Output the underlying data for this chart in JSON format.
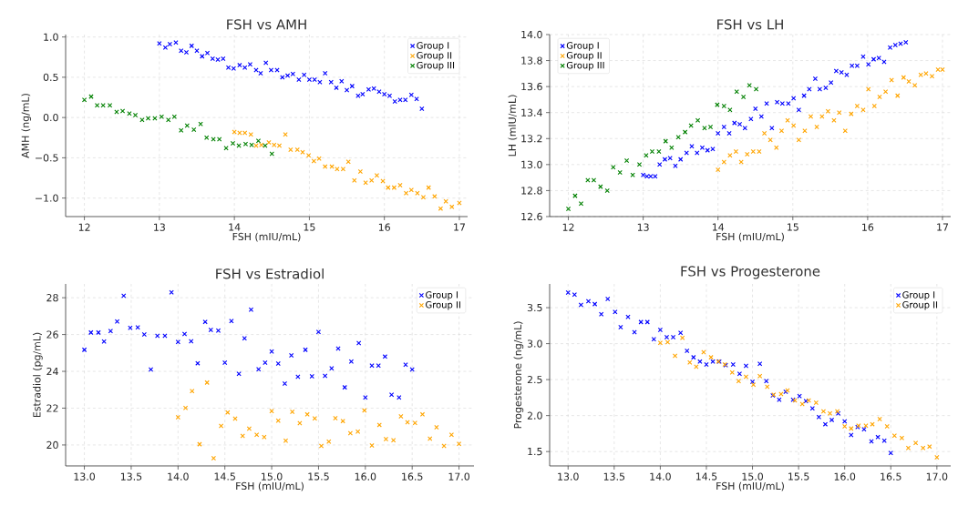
{
  "chart_data": [
    {
      "type": "scatter",
      "title": "FSH vs AMH",
      "xlabel": "FSH (mIU/mL)",
      "ylabel": "AMH (ng/mL)",
      "xlim": [
        11.75,
        17.11
      ],
      "ylim": [
        -1.23,
        1.03
      ],
      "xticks": [
        12,
        13,
        14,
        15,
        16,
        17
      ],
      "yticks": [
        {
          "value": -1,
          "label": "−1.0"
        },
        {
          "value": -0.5,
          "label": "−0.5"
        },
        {
          "value": 0,
          "label": "0.0"
        },
        {
          "value": 0.5,
          "label": "0.5"
        },
        {
          "value": 1,
          "label": "1.0"
        }
      ],
      "grid": true,
      "legend": "top right",
      "marker": "cross",
      "series": [
        {
          "name": "Group I",
          "color": "#0000ff",
          "x": [
            13.0,
            13.08,
            13.14,
            13.22,
            13.29,
            13.36,
            13.43,
            13.5,
            13.57,
            13.64,
            13.71,
            13.78,
            13.85,
            13.92,
            13.99,
            14.07,
            14.14,
            14.21,
            14.29,
            14.35,
            14.42,
            14.49,
            14.57,
            14.64,
            14.71,
            14.78,
            14.86,
            14.93,
            15.0,
            15.07,
            15.14,
            15.21,
            15.29,
            15.36,
            15.43,
            15.5,
            15.57,
            15.65,
            15.71,
            15.79,
            15.86,
            15.93,
            16.0,
            16.07,
            16.14,
            16.21,
            16.28,
            16.36,
            16.43,
            16.5
          ],
          "values": [
            0.92,
            0.87,
            0.91,
            0.93,
            0.83,
            0.81,
            0.89,
            0.83,
            0.76,
            0.8,
            0.73,
            0.72,
            0.73,
            0.62,
            0.61,
            0.65,
            0.62,
            0.66,
            0.59,
            0.55,
            0.68,
            0.59,
            0.59,
            0.5,
            0.52,
            0.54,
            0.47,
            0.53,
            0.47,
            0.47,
            0.44,
            0.55,
            0.44,
            0.37,
            0.45,
            0.34,
            0.39,
            0.27,
            0.29,
            0.35,
            0.36,
            0.32,
            0.29,
            0.27,
            0.2,
            0.22,
            0.22,
            0.28,
            0.23,
            0.11
          ]
        },
        {
          "name": "Group II",
          "color": "#ffa500",
          "x": [
            14.0,
            14.07,
            14.14,
            14.22,
            14.29,
            14.36,
            14.46,
            14.53,
            14.6,
            14.68,
            14.75,
            14.84,
            14.91,
            14.99,
            15.06,
            15.13,
            15.21,
            15.3,
            15.37,
            15.45,
            15.52,
            15.6,
            15.68,
            15.75,
            15.83,
            15.9,
            15.98,
            16.05,
            16.13,
            16.21,
            16.29,
            16.36,
            16.44,
            16.52,
            16.59,
            16.67,
            16.75,
            16.82,
            16.9,
            17.0
          ],
          "values": [
            -0.18,
            -0.19,
            -0.19,
            -0.21,
            -0.35,
            -0.34,
            -0.31,
            -0.34,
            -0.35,
            -0.21,
            -0.4,
            -0.4,
            -0.43,
            -0.47,
            -0.54,
            -0.51,
            -0.61,
            -0.61,
            -0.64,
            -0.64,
            -0.55,
            -0.78,
            -0.67,
            -0.81,
            -0.78,
            -0.72,
            -0.79,
            -0.87,
            -0.87,
            -0.84,
            -0.94,
            -0.9,
            -0.94,
            -0.99,
            -0.87,
            -0.98,
            -1.13,
            -1.04,
            -1.11,
            -1.06
          ]
        },
        {
          "name": "Group III",
          "color": "#008000",
          "x": [
            12.0,
            12.09,
            12.17,
            12.25,
            12.34,
            12.43,
            12.51,
            12.6,
            12.68,
            12.77,
            12.85,
            12.94,
            13.03,
            13.12,
            13.2,
            13.29,
            13.37,
            13.46,
            13.55,
            13.63,
            13.72,
            13.8,
            13.89,
            13.98,
            14.06,
            14.15,
            14.23,
            14.32,
            14.41,
            14.5
          ],
          "values": [
            0.22,
            0.26,
            0.15,
            0.15,
            0.15,
            0.07,
            0.08,
            0.05,
            0.03,
            -0.03,
            -0.01,
            -0.01,
            0.01,
            -0.03,
            0.01,
            -0.16,
            -0.1,
            -0.15,
            -0.08,
            -0.25,
            -0.27,
            -0.27,
            -0.38,
            -0.32,
            -0.35,
            -0.33,
            -0.34,
            -0.29,
            -0.35,
            -0.45
          ]
        }
      ]
    },
    {
      "type": "scatter",
      "title": "FSH vs LH",
      "xlabel": "FSH (mIU/mL)",
      "ylabel": "LH (mIU/mL)",
      "xlim": [
        11.75,
        17.11
      ],
      "ylim": [
        12.6,
        14.0
      ],
      "xticks": [
        12,
        13,
        14,
        15,
        16,
        17
      ],
      "yticks": [
        12.6,
        12.8,
        {
          "value": 13,
          "label": "13.0"
        },
        13.2,
        13.4,
        13.6,
        13.8,
        {
          "value": 14,
          "label": "14.0"
        }
      ],
      "grid": true,
      "legend": "top left",
      "marker": "cross",
      "series": [
        {
          "name": "Group I",
          "color": "#0000ff",
          "x": [
            13.0,
            13.05,
            13.1,
            13.16,
            13.22,
            13.29,
            13.36,
            13.43,
            13.5,
            13.58,
            13.65,
            13.72,
            13.79,
            13.86,
            13.93,
            14.0,
            14.08,
            14.15,
            14.22,
            14.29,
            14.36,
            14.44,
            14.5,
            14.58,
            14.65,
            14.72,
            14.79,
            14.86,
            14.94,
            15.01,
            15.08,
            15.15,
            15.22,
            15.3,
            15.36,
            15.44,
            15.51,
            15.58,
            15.65,
            15.72,
            15.79,
            15.86,
            15.94,
            16.01,
            16.08,
            16.15,
            16.22,
            16.3,
            16.37,
            16.44,
            16.51
          ],
          "values": [
            12.92,
            12.91,
            12.91,
            12.91,
            13.0,
            13.04,
            13.05,
            12.99,
            13.04,
            13.09,
            13.14,
            13.09,
            13.13,
            13.11,
            13.12,
            13.24,
            13.29,
            13.24,
            13.32,
            13.31,
            13.28,
            13.35,
            13.43,
            13.37,
            13.47,
            13.28,
            13.48,
            13.47,
            13.47,
            13.51,
            13.42,
            13.53,
            13.58,
            13.66,
            13.58,
            13.59,
            13.63,
            13.72,
            13.71,
            13.69,
            13.76,
            13.76,
            13.83,
            13.77,
            13.81,
            13.82,
            13.79,
            13.9,
            13.92,
            13.93,
            13.94
          ]
        },
        {
          "name": "Group II",
          "color": "#ffa500",
          "x": [
            14.0,
            14.08,
            14.16,
            14.24,
            14.31,
            14.39,
            14.47,
            14.55,
            14.62,
            14.7,
            14.78,
            14.85,
            14.93,
            15.01,
            15.08,
            15.16,
            15.24,
            15.32,
            15.39,
            15.47,
            15.55,
            15.62,
            15.7,
            15.78,
            15.86,
            15.94,
            16.01,
            16.09,
            16.16,
            16.24,
            16.32,
            16.4,
            16.48,
            16.55,
            16.63,
            16.71,
            16.78,
            16.86,
            16.94,
            17.0
          ],
          "values": [
            12.96,
            13.02,
            13.07,
            13.1,
            13.02,
            13.08,
            13.1,
            13.1,
            13.24,
            13.19,
            13.13,
            13.26,
            13.34,
            13.3,
            13.19,
            13.26,
            13.37,
            13.29,
            13.37,
            13.41,
            13.34,
            13.4,
            13.26,
            13.39,
            13.45,
            13.42,
            13.58,
            13.45,
            13.52,
            13.56,
            13.65,
            13.53,
            13.67,
            13.64,
            13.61,
            13.69,
            13.7,
            13.68,
            13.73,
            13.73
          ]
        },
        {
          "name": "Group III",
          "color": "#008000",
          "x": [
            12.0,
            12.09,
            12.17,
            12.26,
            12.34,
            12.43,
            12.52,
            12.6,
            12.69,
            12.78,
            12.86,
            12.95,
            13.04,
            13.12,
            13.21,
            13.3,
            13.38,
            13.47,
            13.56,
            13.64,
            13.73,
            13.82,
            13.9,
            13.99,
            14.08,
            14.16,
            14.25,
            14.34,
            14.42,
            14.51
          ],
          "values": [
            12.66,
            12.76,
            12.7,
            12.88,
            12.88,
            12.83,
            12.8,
            12.98,
            12.94,
            13.03,
            12.92,
            13.0,
            13.07,
            13.1,
            13.1,
            13.18,
            13.13,
            13.21,
            13.25,
            13.3,
            13.34,
            13.28,
            13.29,
            13.46,
            13.45,
            13.42,
            13.56,
            13.52,
            13.61,
            13.58
          ]
        }
      ]
    },
    {
      "type": "scatter",
      "title": "FSH vs Estradiol",
      "xlabel": "FSH (mIU/mL)",
      "ylabel": "Estradiol (pg/mL)",
      "xlim": [
        12.8,
        17.16
      ],
      "ylim": [
        18.86,
        28.75
      ],
      "xticks": [
        {
          "value": 13,
          "label": "13.0"
        },
        13.5,
        {
          "value": 14,
          "label": "14.0"
        },
        14.5,
        {
          "value": 15,
          "label": "15.0"
        },
        15.5,
        {
          "value": 16,
          "label": "16.0"
        },
        16.5,
        {
          "value": 17,
          "label": "17.0"
        }
      ],
      "yticks": [
        20,
        22,
        24,
        26,
        28
      ],
      "grid": true,
      "legend": "top right",
      "marker": "cross",
      "series": [
        {
          "name": "Group I",
          "color": "#0000ff",
          "x": [
            13.0,
            13.07,
            13.15,
            13.21,
            13.28,
            13.35,
            13.42,
            13.49,
            13.57,
            13.64,
            13.71,
            13.78,
            13.86,
            13.93,
            14.0,
            14.07,
            14.14,
            14.21,
            14.29,
            14.35,
            14.43,
            14.5,
            14.57,
            14.65,
            14.71,
            14.78,
            14.86,
            14.93,
            15.0,
            15.07,
            15.14,
            15.21,
            15.28,
            15.36,
            15.43,
            15.5,
            15.57,
            15.64,
            15.71,
            15.78,
            15.85,
            15.93,
            16.0,
            16.07,
            16.14,
            16.21,
            16.28,
            16.36,
            16.43,
            16.5
          ],
          "values": [
            25.17,
            26.11,
            26.11,
            25.62,
            26.19,
            26.71,
            28.11,
            26.36,
            26.39,
            26.0,
            24.1,
            25.93,
            25.93,
            28.29,
            25.6,
            26.03,
            25.63,
            24.44,
            26.69,
            26.25,
            26.22,
            24.47,
            26.73,
            23.87,
            25.79,
            27.35,
            24.11,
            24.47,
            25.08,
            24.42,
            23.33,
            24.87,
            23.7,
            25.17,
            23.73,
            26.14,
            23.75,
            24.16,
            25.24,
            23.13,
            24.53,
            25.54,
            22.58,
            24.31,
            24.31,
            24.8,
            22.73,
            22.58,
            24.36,
            24.1
          ]
        },
        {
          "name": "Group II",
          "color": "#ffa500",
          "x": [
            14.0,
            14.08,
            14.15,
            14.23,
            14.31,
            14.38,
            14.46,
            14.53,
            14.61,
            14.69,
            14.76,
            14.84,
            14.92,
            15.0,
            15.07,
            15.15,
            15.22,
            15.3,
            15.38,
            15.46,
            15.53,
            15.61,
            15.68,
            15.76,
            15.84,
            15.92,
            15.99,
            16.07,
            16.15,
            16.22,
            16.3,
            16.38,
            16.45,
            16.53,
            16.61,
            16.69,
            16.76,
            16.84,
            16.92,
            17.0
          ],
          "values": [
            21.5,
            22.01,
            22.93,
            20.04,
            23.39,
            19.28,
            21.04,
            21.77,
            21.43,
            20.49,
            20.89,
            20.55,
            20.43,
            21.84,
            21.32,
            20.23,
            21.8,
            21.18,
            21.66,
            21.44,
            19.95,
            20.18,
            21.46,
            21.3,
            20.64,
            20.73,
            21.87,
            19.97,
            21.09,
            20.32,
            20.26,
            21.55,
            21.23,
            21.2,
            21.66,
            20.34,
            20.96,
            19.95,
            20.55,
            20.06
          ]
        }
      ]
    },
    {
      "type": "scatter",
      "title": "FSH vs Progesterone",
      "xlabel": "FSH (mIU/mL)",
      "ylabel": "Progesterone (ng/mL)",
      "xlim": [
        12.8,
        17.15
      ],
      "ylim": [
        1.3,
        3.83
      ],
      "xticks": [
        {
          "value": 13,
          "label": "13.0"
        },
        13.5,
        {
          "value": 14,
          "label": "14.0"
        },
        14.5,
        {
          "value": 15,
          "label": "15.0"
        },
        15.5,
        {
          "value": 16,
          "label": "16.0"
        },
        16.5,
        {
          "value": 17,
          "label": "17.0"
        }
      ],
      "yticks": [
        1.5,
        {
          "value": 2,
          "label": "2.0"
        },
        2.5,
        {
          "value": 3,
          "label": "3.0"
        },
        3.5
      ],
      "grid": true,
      "legend": "top right",
      "marker": "cross",
      "series": [
        {
          "name": "Group I",
          "color": "#0000ff",
          "x": [
            13.0,
            13.07,
            13.14,
            13.22,
            13.29,
            13.36,
            13.43,
            13.51,
            13.57,
            13.65,
            13.72,
            13.79,
            13.86,
            13.93,
            14.0,
            14.07,
            14.14,
            14.22,
            14.29,
            14.36,
            14.43,
            14.5,
            14.57,
            14.64,
            14.71,
            14.79,
            14.86,
            14.93,
            15.0,
            15.08,
            15.15,
            15.22,
            15.29,
            15.36,
            15.44,
            15.51,
            15.58,
            15.65,
            15.72,
            15.79,
            15.86,
            15.93,
            16.0,
            16.07,
            16.14,
            16.21,
            16.29,
            16.36,
            16.43,
            16.5
          ],
          "values": [
            3.71,
            3.68,
            3.54,
            3.59,
            3.55,
            3.41,
            3.62,
            3.44,
            3.23,
            3.37,
            3.16,
            3.3,
            3.3,
            3.06,
            3.19,
            3.09,
            3.09,
            3.15,
            2.9,
            2.81,
            2.75,
            2.71,
            2.75,
            2.75,
            2.7,
            2.71,
            2.58,
            2.69,
            2.47,
            2.72,
            2.48,
            2.28,
            2.22,
            2.33,
            2.22,
            2.27,
            2.2,
            2.1,
            1.98,
            1.88,
            1.94,
            2.03,
            1.92,
            1.73,
            1.84,
            1.81,
            1.64,
            1.7,
            1.65,
            1.48
          ]
        },
        {
          "name": "Group II",
          "color": "#ffa500",
          "x": [
            14.0,
            14.08,
            14.16,
            14.24,
            14.32,
            14.39,
            14.47,
            14.55,
            14.63,
            14.7,
            14.78,
            14.85,
            14.93,
            15.01,
            15.08,
            15.16,
            15.23,
            15.31,
            15.38,
            15.46,
            15.54,
            15.61,
            15.69,
            15.77,
            15.84,
            15.92,
            16.0,
            16.07,
            16.15,
            16.23,
            16.3,
            16.38,
            16.46,
            16.54,
            16.62,
            16.69,
            16.77,
            16.85,
            16.92,
            17.0
          ],
          "values": [
            3.01,
            3.02,
            2.83,
            3.08,
            2.74,
            2.68,
            2.88,
            2.81,
            2.75,
            2.71,
            2.6,
            2.48,
            2.54,
            2.43,
            2.55,
            2.4,
            2.29,
            2.3,
            2.35,
            2.21,
            2.16,
            2.21,
            2.18,
            2.06,
            2.03,
            2.06,
            1.85,
            1.82,
            1.86,
            1.86,
            1.88,
            1.95,
            1.85,
            1.72,
            1.69,
            1.55,
            1.62,
            1.55,
            1.57,
            1.42
          ]
        }
      ]
    }
  ]
}
